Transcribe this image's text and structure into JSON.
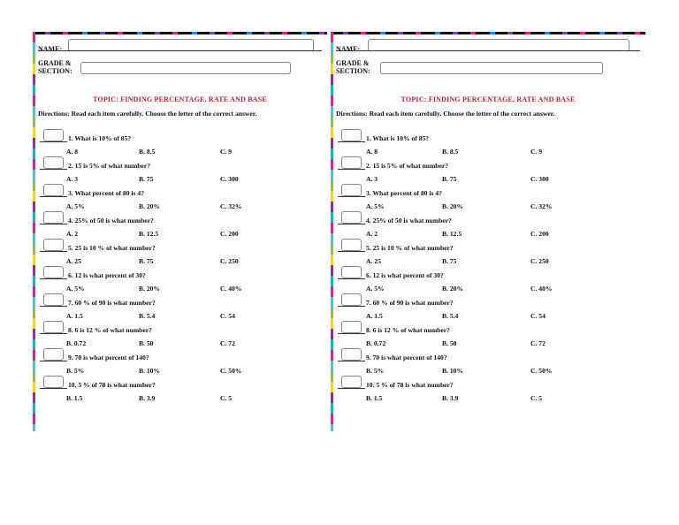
{
  "header": {
    "name_label": "NAME:",
    "grade_label_line1": "GRADE &",
    "grade_label_line2": "SECTION:"
  },
  "topic": "TOPIC: FINDING PERCENTAGE, RATE AND BASE",
  "directions": "Directions: Read each item carefully. Choose the letter of the correct answer.",
  "questions": [
    {
      "text": "1. What is 10% of 85?",
      "options": [
        "A. 8",
        "B. 8.5",
        "C. 9"
      ]
    },
    {
      "text": "2. 15 is 5% of what number?",
      "options": [
        "A. 3",
        "B. 75",
        "C. 300"
      ]
    },
    {
      "text": "3. What percent of 80 is 4?",
      "options": [
        "A.   5%",
        "B. 20%",
        "C. 32%"
      ]
    },
    {
      "text": "4. 25% of 50 is what number?",
      "options": [
        "A. 2",
        "B. 12.5",
        "C.  200"
      ]
    },
    {
      "text": "5.  25 is  10 % of what number?",
      "options": [
        "A. 25",
        "B. 75",
        "C. 250"
      ]
    },
    {
      "text": "6.  12 is what percent of  30?",
      "options": [
        "A.   5%",
        "B. 20%",
        "C. 40%"
      ]
    },
    {
      "text": "7.  60 % of 90 is what number?",
      "options": [
        "A.   1.5",
        "B. 5.4",
        "C. 54"
      ]
    },
    {
      "text": "8.  6  is  12 % of what number?",
      "options": [
        "B. 0.72",
        "B. 50",
        "C. 72"
      ]
    },
    {
      "text": "9.  70 is what percent of  140?",
      "options": [
        "B.   5%",
        "B. 10%",
        "C. 50%"
      ]
    },
    {
      "text": "10.  5 % of 78 is what number?",
      "options": [
        "B.   1.5",
        "B. 3.9",
        "C. 5"
      ]
    }
  ]
}
